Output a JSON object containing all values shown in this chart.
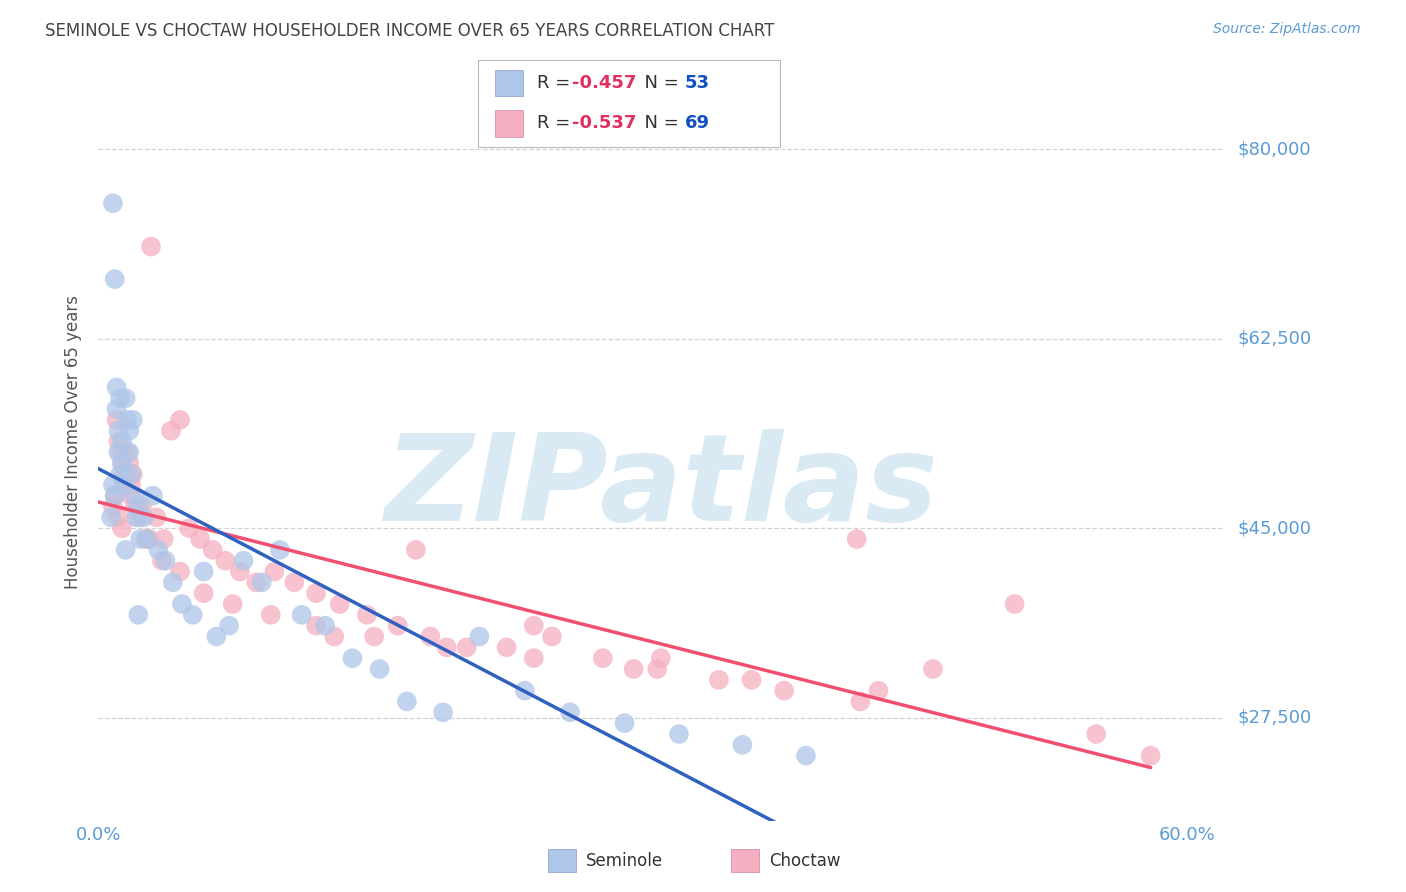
{
  "title": "SEMINOLE VS CHOCTAW HOUSEHOLDER INCOME OVER 65 YEARS CORRELATION CHART",
  "source": "Source: ZipAtlas.com",
  "ylabel": "Householder Income Over 65 years",
  "xlim": [
    0.0,
    0.62
  ],
  "ylim": [
    18000,
    88000
  ],
  "ytick_vals": [
    27500,
    45000,
    62500,
    80000
  ],
  "ytick_labels": [
    "$27,500",
    "$45,000",
    "$62,500",
    "$80,000"
  ],
  "xtick_vals": [
    0.0,
    0.1,
    0.2,
    0.3,
    0.4,
    0.5,
    0.6
  ],
  "xtick_labels": [
    "0.0%",
    "",
    "",
    "",
    "",
    "",
    "60.0%"
  ],
  "seminole_R": -0.457,
  "seminole_N": 53,
  "choctaw_R": -0.537,
  "choctaw_N": 69,
  "seminole_dot_color": "#aec6e8",
  "choctaw_dot_color": "#f5afc0",
  "seminole_line_color": "#3060c0",
  "choctaw_line_color": "#f05070",
  "bg_color": "#ffffff",
  "grid_color": "#cccccc",
  "watermark": "ZIPatlas",
  "watermark_color": "#daeaf5",
  "title_color": "#444444",
  "ytick_color": "#5b9bd5",
  "xtick_color": "#5b9bd5",
  "source_color": "#5b9bd5",
  "ylabel_color": "#555555",
  "legend_R_color": "#e03060",
  "legend_N_color": "#1050c0",
  "seminole_x": [
    0.008,
    0.009,
    0.01,
    0.01,
    0.011,
    0.011,
    0.012,
    0.012,
    0.013,
    0.013,
    0.014,
    0.015,
    0.016,
    0.017,
    0.017,
    0.018,
    0.019,
    0.02,
    0.021,
    0.022,
    0.023,
    0.025,
    0.027,
    0.03,
    0.033,
    0.037,
    0.041,
    0.046,
    0.052,
    0.058,
    0.065,
    0.072,
    0.08,
    0.09,
    0.1,
    0.112,
    0.125,
    0.14,
    0.155,
    0.17,
    0.19,
    0.21,
    0.235,
    0.26,
    0.29,
    0.32,
    0.355,
    0.39,
    0.007,
    0.008,
    0.009,
    0.015,
    0.022
  ],
  "seminole_y": [
    75000,
    68000,
    58000,
    56000,
    54000,
    52000,
    50000,
    57000,
    53000,
    51000,
    49000,
    57000,
    55000,
    54000,
    52000,
    50000,
    55000,
    48000,
    46000,
    47000,
    44000,
    46000,
    44000,
    48000,
    43000,
    42000,
    40000,
    38000,
    37000,
    41000,
    35000,
    36000,
    42000,
    40000,
    43000,
    37000,
    36000,
    33000,
    32000,
    29000,
    28000,
    35000,
    30000,
    28000,
    27000,
    26000,
    25000,
    24000,
    46000,
    49000,
    48000,
    43000,
    37000
  ],
  "choctaw_x": [
    0.01,
    0.011,
    0.012,
    0.013,
    0.014,
    0.015,
    0.016,
    0.017,
    0.018,
    0.019,
    0.02,
    0.022,
    0.024,
    0.026,
    0.029,
    0.032,
    0.036,
    0.04,
    0.045,
    0.05,
    0.056,
    0.063,
    0.07,
    0.078,
    0.087,
    0.097,
    0.108,
    0.12,
    0.133,
    0.148,
    0.165,
    0.183,
    0.203,
    0.225,
    0.25,
    0.278,
    0.308,
    0.342,
    0.378,
    0.418,
    0.46,
    0.505,
    0.55,
    0.58,
    0.008,
    0.009,
    0.011,
    0.013,
    0.015,
    0.018,
    0.022,
    0.028,
    0.035,
    0.045,
    0.058,
    0.074,
    0.095,
    0.12,
    0.152,
    0.192,
    0.24,
    0.295,
    0.36,
    0.43,
    0.175,
    0.31,
    0.24,
    0.42,
    0.13
  ],
  "choctaw_y": [
    55000,
    53000,
    52000,
    51000,
    50000,
    49000,
    52000,
    51000,
    48000,
    50000,
    47000,
    46000,
    47000,
    44000,
    71000,
    46000,
    44000,
    54000,
    55000,
    45000,
    44000,
    43000,
    42000,
    41000,
    40000,
    41000,
    40000,
    39000,
    38000,
    37000,
    36000,
    35000,
    34000,
    34000,
    35000,
    33000,
    32000,
    31000,
    30000,
    44000,
    32000,
    38000,
    26000,
    24000,
    47000,
    48000,
    46000,
    45000,
    50000,
    49000,
    47000,
    44000,
    42000,
    41000,
    39000,
    38000,
    37000,
    36000,
    35000,
    34000,
    33000,
    32000,
    31000,
    30000,
    43000,
    33000,
    36000,
    29000,
    35000
  ]
}
